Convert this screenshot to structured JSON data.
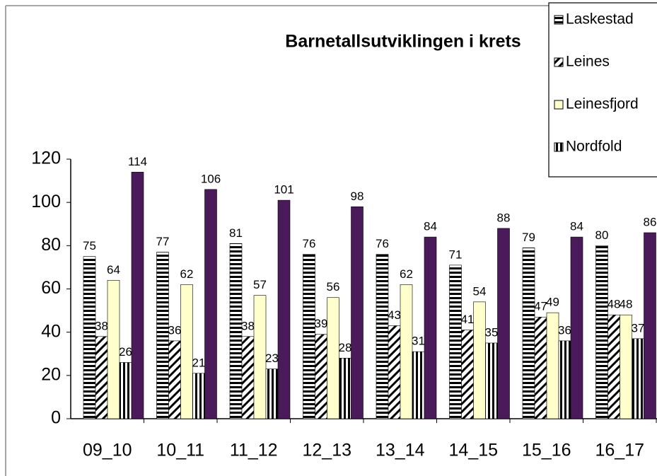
{
  "chart_data": {
    "type": "bar",
    "title": "Barnetallsutviklingen i krets",
    "categories": [
      "09_10",
      "10_11",
      "11_12",
      "12_13",
      "13_14",
      "14_15",
      "15_16",
      "16_17"
    ],
    "series": [
      {
        "name": "Laskestad",
        "color": "#000000",
        "pattern": "horizontal",
        "values": [
          75,
          77,
          81,
          76,
          76,
          71,
          79,
          80
        ]
      },
      {
        "name": "Leines",
        "color": "#000000",
        "pattern": "diagonal",
        "values": [
          38,
          36,
          38,
          39,
          43,
          41,
          47,
          48
        ]
      },
      {
        "name": "Leinesfjord",
        "color": "#ffffcc",
        "pattern": "solid",
        "values": [
          64,
          62,
          57,
          56,
          62,
          54,
          49,
          48
        ]
      },
      {
        "name": "Nordfold",
        "color": "#000000",
        "pattern": "vertical",
        "values": [
          26,
          21,
          23,
          28,
          31,
          35,
          36,
          37
        ]
      },
      {
        "color": "#4b1a5a",
        "pattern": "solid",
        "values": [
          114,
          106,
          101,
          98,
          84,
          88,
          84,
          86
        ]
      }
    ],
    "ylim": [
      0,
      120
    ],
    "yticks": [
      0,
      20,
      40,
      60,
      80,
      100,
      120
    ],
    "legend": "top-right"
  }
}
